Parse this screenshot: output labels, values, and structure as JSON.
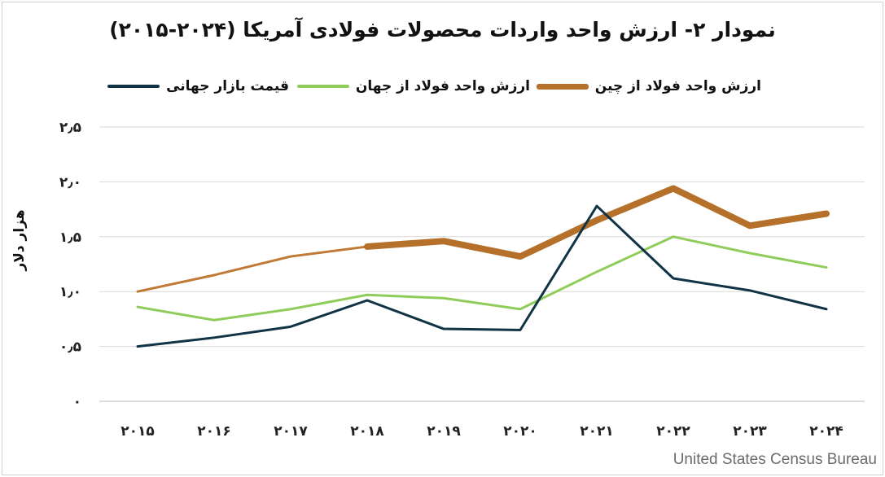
{
  "chart_data": {
    "type": "line",
    "title": "نمودار ۲- ارزش واحد واردات محصولات فولادی آمریکا (۲۰۲۴-۲۰۱۵)",
    "ylabel": "هزار دلار",
    "xlabel": "",
    "categories": [
      "۲۰۱۵",
      "۲۰۱۶",
      "۲۰۱۷",
      "۲۰۱۸",
      "۲۰۱۹",
      "۲۰۲۰",
      "۲۰۲۱",
      "۲۰۲۲",
      "۲۰۲۳",
      "۲۰۲۴"
    ],
    "y_ticks": [
      {
        "value": 0,
        "label": "۰"
      },
      {
        "value": 0.5,
        "label": "۰٫۵"
      },
      {
        "value": 1.0,
        "label": "۱٫۰"
      },
      {
        "value": 1.5,
        "label": "۱٫۵"
      },
      {
        "value": 2.0,
        "label": "۲٫۰"
      },
      {
        "value": 2.5,
        "label": "۲٫۵"
      }
    ],
    "ylim": [
      0,
      2.5
    ],
    "grid": true,
    "legend_position": "top",
    "series": [
      {
        "name": "ارزش واحد فولاد از چین",
        "color": "#b5702a",
        "width": "thick",
        "values": [
          null,
          null,
          null,
          1.41,
          1.46,
          1.32,
          1.65,
          1.94,
          1.6,
          1.71
        ]
      },
      {
        "name": "ارزش واحد فولاد از جهان",
        "color": "#8fcc5a",
        "width": "medium",
        "values": [
          0.86,
          0.74,
          0.84,
          0.97,
          0.94,
          0.84,
          1.18,
          1.5,
          1.35,
          1.22
        ]
      },
      {
        "name": "قیمت بازار جهانی",
        "color": "#103345",
        "width": "medium",
        "values": [
          0.5,
          0.58,
          0.68,
          0.92,
          0.66,
          0.65,
          1.78,
          1.12,
          1.01,
          0.84
        ]
      }
    ],
    "extra_segment": {
      "series": "ارزش واحد فولاد از چین",
      "color": "#c07a36",
      "values": [
        1.0,
        1.15,
        1.32,
        1.41,
        null,
        null,
        null,
        null,
        null,
        null
      ]
    },
    "source": "United States Census Bureau"
  }
}
